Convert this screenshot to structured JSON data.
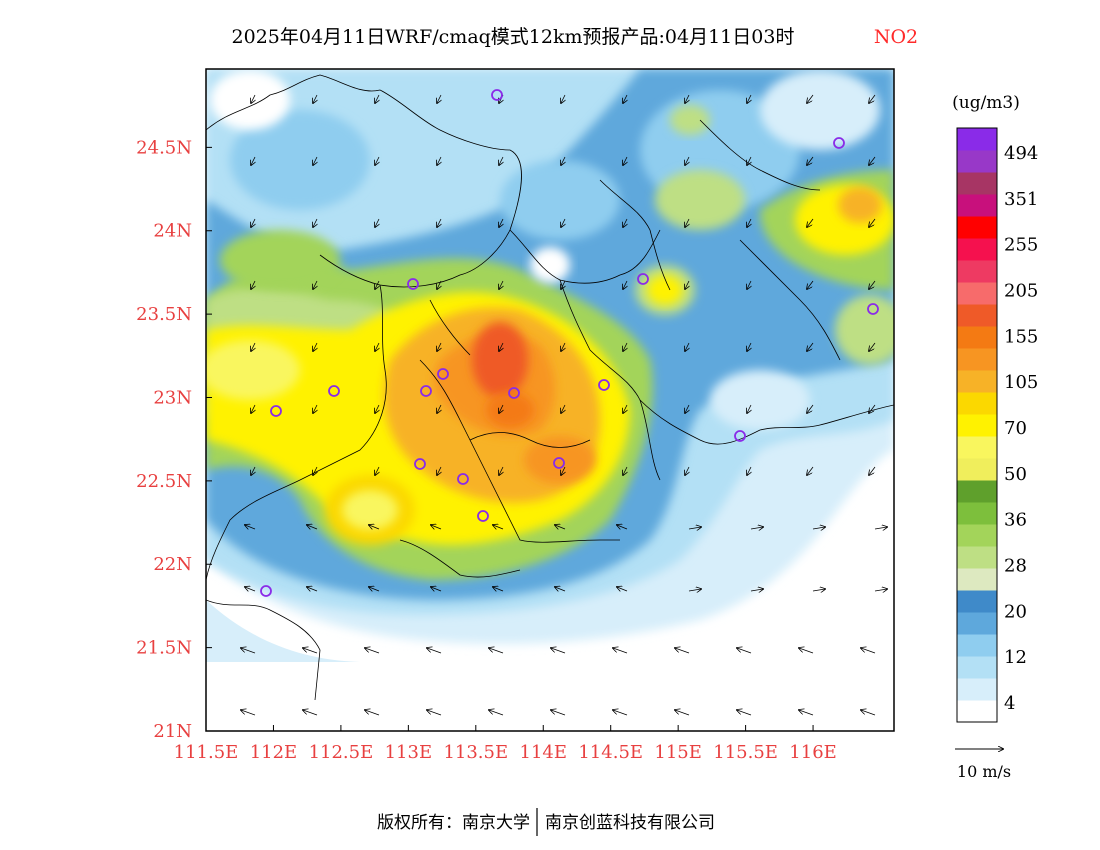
{
  "header": {
    "title": "2025年04月11日WRF/cmaq模式12km预报产品:04月11日03时",
    "species": "NO2",
    "species_color": "#ff2a2a"
  },
  "axes": {
    "x_ticks": [
      "111.5E",
      "112E",
      "112.5E",
      "113E",
      "113.5E",
      "114E",
      "114.5E",
      "115E",
      "115.5E",
      "116E"
    ],
    "y_ticks": [
      "21N",
      "21.5N",
      "22N",
      "22.5N",
      "23N",
      "23.5N",
      "24N",
      "24.5N"
    ],
    "tick_color": "#e84040",
    "lon_range": [
      111.5,
      116.6
    ],
    "lat_range": [
      21.0,
      24.97
    ]
  },
  "legend": {
    "unit": "(ug/m3)",
    "bins": [
      {
        "color": "#ffffff"
      },
      {
        "color": "#d7eefa"
      },
      {
        "color": "#b3e0f5"
      },
      {
        "color": "#8fcdef"
      },
      {
        "color": "#5ea8dc"
      },
      {
        "color": "#3f8ac9"
      },
      {
        "color": "#dde9c0"
      },
      {
        "color": "#bedf84"
      },
      {
        "color": "#a3d45a"
      },
      {
        "color": "#7dbf3c"
      },
      {
        "color": "#5fa02c"
      },
      {
        "color": "#f0ee5c"
      },
      {
        "color": "#f9f65e"
      },
      {
        "color": "#fff200"
      },
      {
        "color": "#fbd800"
      },
      {
        "color": "#f7b227"
      },
      {
        "color": "#f79522"
      },
      {
        "color": "#f47a13"
      },
      {
        "color": "#ef5a28"
      },
      {
        "color": "#f76b6b"
      },
      {
        "color": "#ee3a62"
      },
      {
        "color": "#f5114e"
      },
      {
        "color": "#ff0000"
      },
      {
        "color": "#c8107c"
      },
      {
        "color": "#a73564"
      },
      {
        "color": "#9838c8"
      },
      {
        "color": "#8a2be8"
      }
    ],
    "labels": [
      "494",
      "351",
      "255",
      "205",
      "155",
      "105",
      "70",
      "50",
      "36",
      "28",
      "20",
      "12",
      "4"
    ]
  },
  "wind_scale": {
    "label": "10 m/s"
  },
  "footer": {
    "left": "版权所有：南京大学",
    "right": "南京创蓝科技有限公司"
  }
}
